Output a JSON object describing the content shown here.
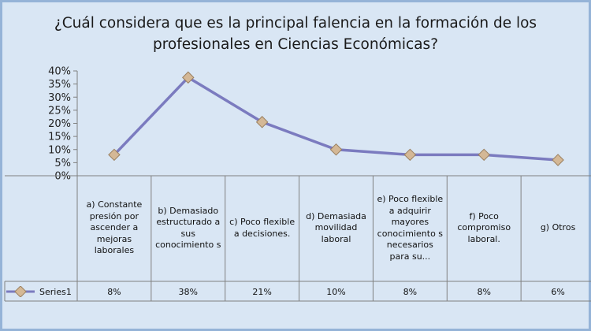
{
  "title": "¿Cuál considera que es la principal falencia en la formación de los profesionales en Ciencias Económicas?",
  "colors": {
    "line": "#7b7bbf",
    "marker": "#d4b896",
    "marker_stroke": "#9a8060",
    "background": "#d9e6f4",
    "border": "#95b3d7",
    "grid": "#808080"
  },
  "chart_data": {
    "type": "line",
    "title": "¿Cuál considera que es la principal falencia en la formación de los profesionales en Ciencias Económicas?",
    "categories": [
      "a) Constante presión por ascender a mejoras laborales",
      "b) Demasiado estructurado a sus conocimiento s",
      "c) Poco flexible a decisiones.",
      "d) Demasiada movilidad laboral",
      "e) Poco flexible a adquirir mayores conocimiento s necesarios para su...",
      "f) Poco compromiso laboral.",
      "g) Otros"
    ],
    "series": [
      {
        "name": "Series1",
        "values": [
          0.08,
          0.375,
          0.205,
          0.1,
          0.08,
          0.08,
          0.06
        ],
        "labels": [
          "8%",
          "38%",
          "21%",
          "10%",
          "8%",
          "8%",
          "6%"
        ]
      }
    ],
    "yticks": [
      "0%",
      "5%",
      "10%",
      "15%",
      "20%",
      "25%",
      "30%",
      "35%",
      "40%"
    ],
    "ylim": [
      0,
      0.4
    ],
    "data_table": true,
    "legend": "left of data table"
  }
}
